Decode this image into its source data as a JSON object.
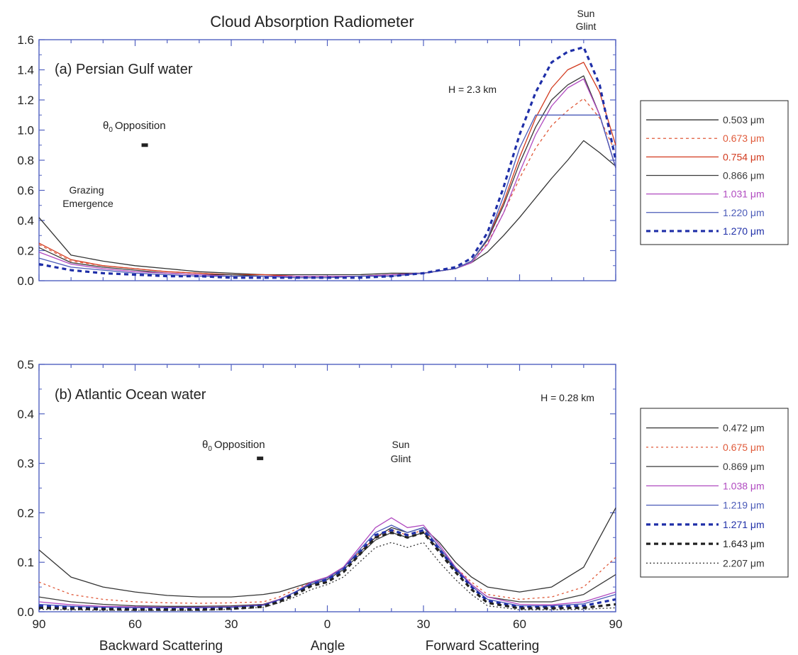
{
  "figure_title": "Cloud Absorption Radiometer",
  "x_axis_labels": {
    "backward": "Backward Scattering",
    "angle": "Angle",
    "forward": "Forward Scattering"
  },
  "chart_data": [
    {
      "type": "line",
      "panel_label": "(a) Persian Gulf water",
      "altitude": "H = 2.3 km",
      "annotations": {
        "sun_glint_line1": "Sun",
        "sun_glint_line2": "Glint",
        "opposition_symbol": "θ",
        "opposition_sub": "0",
        "opposition_text": "Opposition",
        "opposition_x": -57,
        "opposition_y": 0.9,
        "grazing_line1": "Grazing",
        "grazing_line2": "Emergence"
      },
      "x_tick_labels": [
        "90",
        "60",
        "30",
        "0",
        "30",
        "60",
        "90"
      ],
      "x_tick_values": [
        -90,
        -60,
        -30,
        0,
        30,
        60,
        90
      ],
      "y_tick_labels": [
        "0.0",
        "0.2",
        "0.4",
        "0.6",
        "0.8",
        "1.0",
        "1.2",
        "1.4",
        "1.6"
      ],
      "ylim": [
        0,
        1.6
      ],
      "xlim": [
        -90,
        90
      ],
      "x": [
        -90,
        -80,
        -70,
        -60,
        -50,
        -40,
        -30,
        -20,
        -10,
        0,
        10,
        20,
        30,
        40,
        45,
        50,
        55,
        60,
        65,
        70,
        75,
        80,
        85,
        90
      ],
      "series": [
        {
          "name": "0.503 μm",
          "color": "#333333",
          "dash": "solid",
          "width": 1.3,
          "values": [
            0.42,
            0.17,
            0.13,
            0.1,
            0.08,
            0.06,
            0.05,
            0.04,
            0.04,
            0.04,
            0.04,
            0.05,
            0.05,
            0.08,
            0.12,
            0.19,
            0.3,
            0.42,
            0.55,
            0.68,
            0.8,
            0.93,
            0.85,
            0.76
          ]
        },
        {
          "name": "0.673 μm",
          "color": "#e05a3a",
          "dash": "4,4",
          "width": 1.3,
          "values": [
            0.24,
            0.13,
            0.1,
            0.08,
            0.06,
            0.05,
            0.04,
            0.04,
            0.03,
            0.03,
            0.03,
            0.04,
            0.05,
            0.08,
            0.12,
            0.25,
            0.45,
            0.68,
            0.88,
            1.03,
            1.13,
            1.21,
            1.08,
            0.85
          ]
        },
        {
          "name": "0.754 μm",
          "color": "#d23a1e",
          "dash": "solid",
          "width": 1.3,
          "values": [
            0.25,
            0.14,
            0.1,
            0.08,
            0.06,
            0.05,
            0.04,
            0.04,
            0.03,
            0.03,
            0.03,
            0.04,
            0.05,
            0.08,
            0.13,
            0.28,
            0.52,
            0.82,
            1.08,
            1.28,
            1.4,
            1.45,
            1.25,
            0.9
          ]
        },
        {
          "name": "0.866 μm",
          "color": "#3a3a3a",
          "dash": "solid",
          "width": 1.3,
          "values": [
            0.22,
            0.12,
            0.09,
            0.07,
            0.05,
            0.04,
            0.04,
            0.03,
            0.03,
            0.03,
            0.03,
            0.04,
            0.05,
            0.08,
            0.13,
            0.27,
            0.5,
            0.78,
            1.02,
            1.2,
            1.3,
            1.36,
            1.1,
            0.75
          ]
        },
        {
          "name": "1.031 μm",
          "color": "#b04ac0",
          "dash": "solid",
          "width": 1.3,
          "values": [
            0.19,
            0.11,
            0.08,
            0.06,
            0.05,
            0.04,
            0.03,
            0.03,
            0.03,
            0.03,
            0.03,
            0.04,
            0.05,
            0.08,
            0.12,
            0.24,
            0.45,
            0.72,
            0.97,
            1.16,
            1.28,
            1.34,
            1.1,
            0.75
          ]
        },
        {
          "name": "1.220 μm",
          "color": "#4a5ab8",
          "dash": "solid",
          "width": 1.3,
          "values": [
            0.15,
            0.09,
            0.07,
            0.05,
            0.04,
            0.03,
            0.03,
            0.03,
            0.02,
            0.02,
            0.03,
            0.03,
            0.05,
            0.08,
            0.13,
            0.28,
            0.56,
            0.88,
            1.1,
            1.1,
            1.1,
            1.1,
            1.1,
            0.75
          ]
        },
        {
          "name": "1.270 μm",
          "color": "#1f2fa8",
          "dash": "6,5",
          "width": 3.2,
          "values": [
            0.11,
            0.07,
            0.05,
            0.04,
            0.03,
            0.03,
            0.02,
            0.02,
            0.02,
            0.02,
            0.02,
            0.03,
            0.05,
            0.09,
            0.15,
            0.32,
            0.62,
            0.97,
            1.25,
            1.45,
            1.52,
            1.55,
            1.3,
            0.8
          ]
        }
      ]
    },
    {
      "type": "line",
      "panel_label": "(b) Atlantic Ocean water",
      "altitude": "H = 0.28 km",
      "annotations": {
        "sun_glint_line1": "Sun",
        "sun_glint_line2": "Glint",
        "opposition_symbol": "θ",
        "opposition_sub": "0",
        "opposition_text": "Opposition",
        "opposition_x": -21,
        "opposition_y": 0.31
      },
      "x_tick_labels": [
        "90",
        "60",
        "30",
        "0",
        "30",
        "60",
        "90"
      ],
      "x_tick_values": [
        -90,
        -60,
        -30,
        0,
        30,
        60,
        90
      ],
      "y_tick_labels": [
        "0.0",
        "0.1",
        "0.2",
        "0.3",
        "0.4",
        "0.5"
      ],
      "ylim": [
        0,
        0.5
      ],
      "xlim": [
        -90,
        90
      ],
      "x": [
        -90,
        -80,
        -70,
        -60,
        -50,
        -40,
        -30,
        -20,
        -15,
        -10,
        -5,
        0,
        5,
        10,
        15,
        20,
        25,
        30,
        35,
        40,
        45,
        50,
        60,
        70,
        80,
        90
      ],
      "series": [
        {
          "name": "0.472 μm",
          "color": "#333333",
          "dash": "solid",
          "width": 1.3,
          "values": [
            0.125,
            0.07,
            0.05,
            0.04,
            0.033,
            0.03,
            0.03,
            0.035,
            0.04,
            0.05,
            0.06,
            0.07,
            0.09,
            0.12,
            0.15,
            0.17,
            0.16,
            0.17,
            0.14,
            0.1,
            0.07,
            0.05,
            0.04,
            0.05,
            0.09,
            0.21
          ]
        },
        {
          "name": "0.675 μm",
          "color": "#e05a3a",
          "dash": "3,4",
          "width": 1.3,
          "values": [
            0.06,
            0.035,
            0.025,
            0.02,
            0.018,
            0.017,
            0.018,
            0.02,
            0.03,
            0.045,
            0.06,
            0.07,
            0.09,
            0.12,
            0.15,
            0.165,
            0.155,
            0.165,
            0.13,
            0.09,
            0.06,
            0.035,
            0.025,
            0.03,
            0.05,
            0.11
          ]
        },
        {
          "name": "0.869 μm",
          "color": "#3a3a3a",
          "dash": "solid",
          "width": 1.3,
          "values": [
            0.03,
            0.02,
            0.015,
            0.012,
            0.011,
            0.011,
            0.012,
            0.015,
            0.025,
            0.04,
            0.055,
            0.065,
            0.085,
            0.115,
            0.145,
            0.16,
            0.15,
            0.16,
            0.125,
            0.085,
            0.055,
            0.03,
            0.02,
            0.02,
            0.035,
            0.075
          ]
        },
        {
          "name": "1.038 μm",
          "color": "#b04ac0",
          "dash": "solid",
          "width": 1.3,
          "values": [
            0.02,
            0.014,
            0.011,
            0.01,
            0.009,
            0.009,
            0.01,
            0.014,
            0.025,
            0.04,
            0.06,
            0.07,
            0.09,
            0.13,
            0.17,
            0.19,
            0.17,
            0.175,
            0.135,
            0.09,
            0.055,
            0.03,
            0.015,
            0.014,
            0.02,
            0.04
          ]
        },
        {
          "name": "1.219 μm",
          "color": "#4a5ab8",
          "dash": "solid",
          "width": 1.3,
          "values": [
            0.015,
            0.011,
            0.009,
            0.008,
            0.008,
            0.008,
            0.009,
            0.013,
            0.024,
            0.04,
            0.058,
            0.068,
            0.088,
            0.125,
            0.16,
            0.175,
            0.16,
            0.17,
            0.13,
            0.088,
            0.052,
            0.025,
            0.012,
            0.012,
            0.016,
            0.035
          ]
        },
        {
          "name": "1.271 μm",
          "color": "#1f2fa8",
          "dash": "6,5",
          "width": 3.2,
          "values": [
            0.012,
            0.009,
            0.007,
            0.006,
            0.006,
            0.006,
            0.008,
            0.012,
            0.022,
            0.038,
            0.055,
            0.065,
            0.085,
            0.12,
            0.155,
            0.165,
            0.155,
            0.165,
            0.125,
            0.085,
            0.05,
            0.022,
            0.01,
            0.01,
            0.012,
            0.025
          ]
        },
        {
          "name": "1.643 μm",
          "color": "#222222",
          "dash": "6,5",
          "width": 3.2,
          "values": [
            0.008,
            0.006,
            0.005,
            0.004,
            0.004,
            0.004,
            0.006,
            0.01,
            0.02,
            0.035,
            0.052,
            0.06,
            0.08,
            0.115,
            0.15,
            0.16,
            0.15,
            0.16,
            0.12,
            0.08,
            0.045,
            0.018,
            0.007,
            0.007,
            0.008,
            0.015
          ]
        },
        {
          "name": "2.207 μm",
          "color": "#333333",
          "dash": "2,3",
          "width": 1.3,
          "values": [
            0.005,
            0.004,
            0.003,
            0.003,
            0.003,
            0.003,
            0.005,
            0.009,
            0.018,
            0.03,
            0.045,
            0.055,
            0.07,
            0.1,
            0.13,
            0.14,
            0.13,
            0.14,
            0.1,
            0.065,
            0.035,
            0.012,
            0.004,
            0.004,
            0.005,
            0.008
          ]
        }
      ]
    }
  ]
}
